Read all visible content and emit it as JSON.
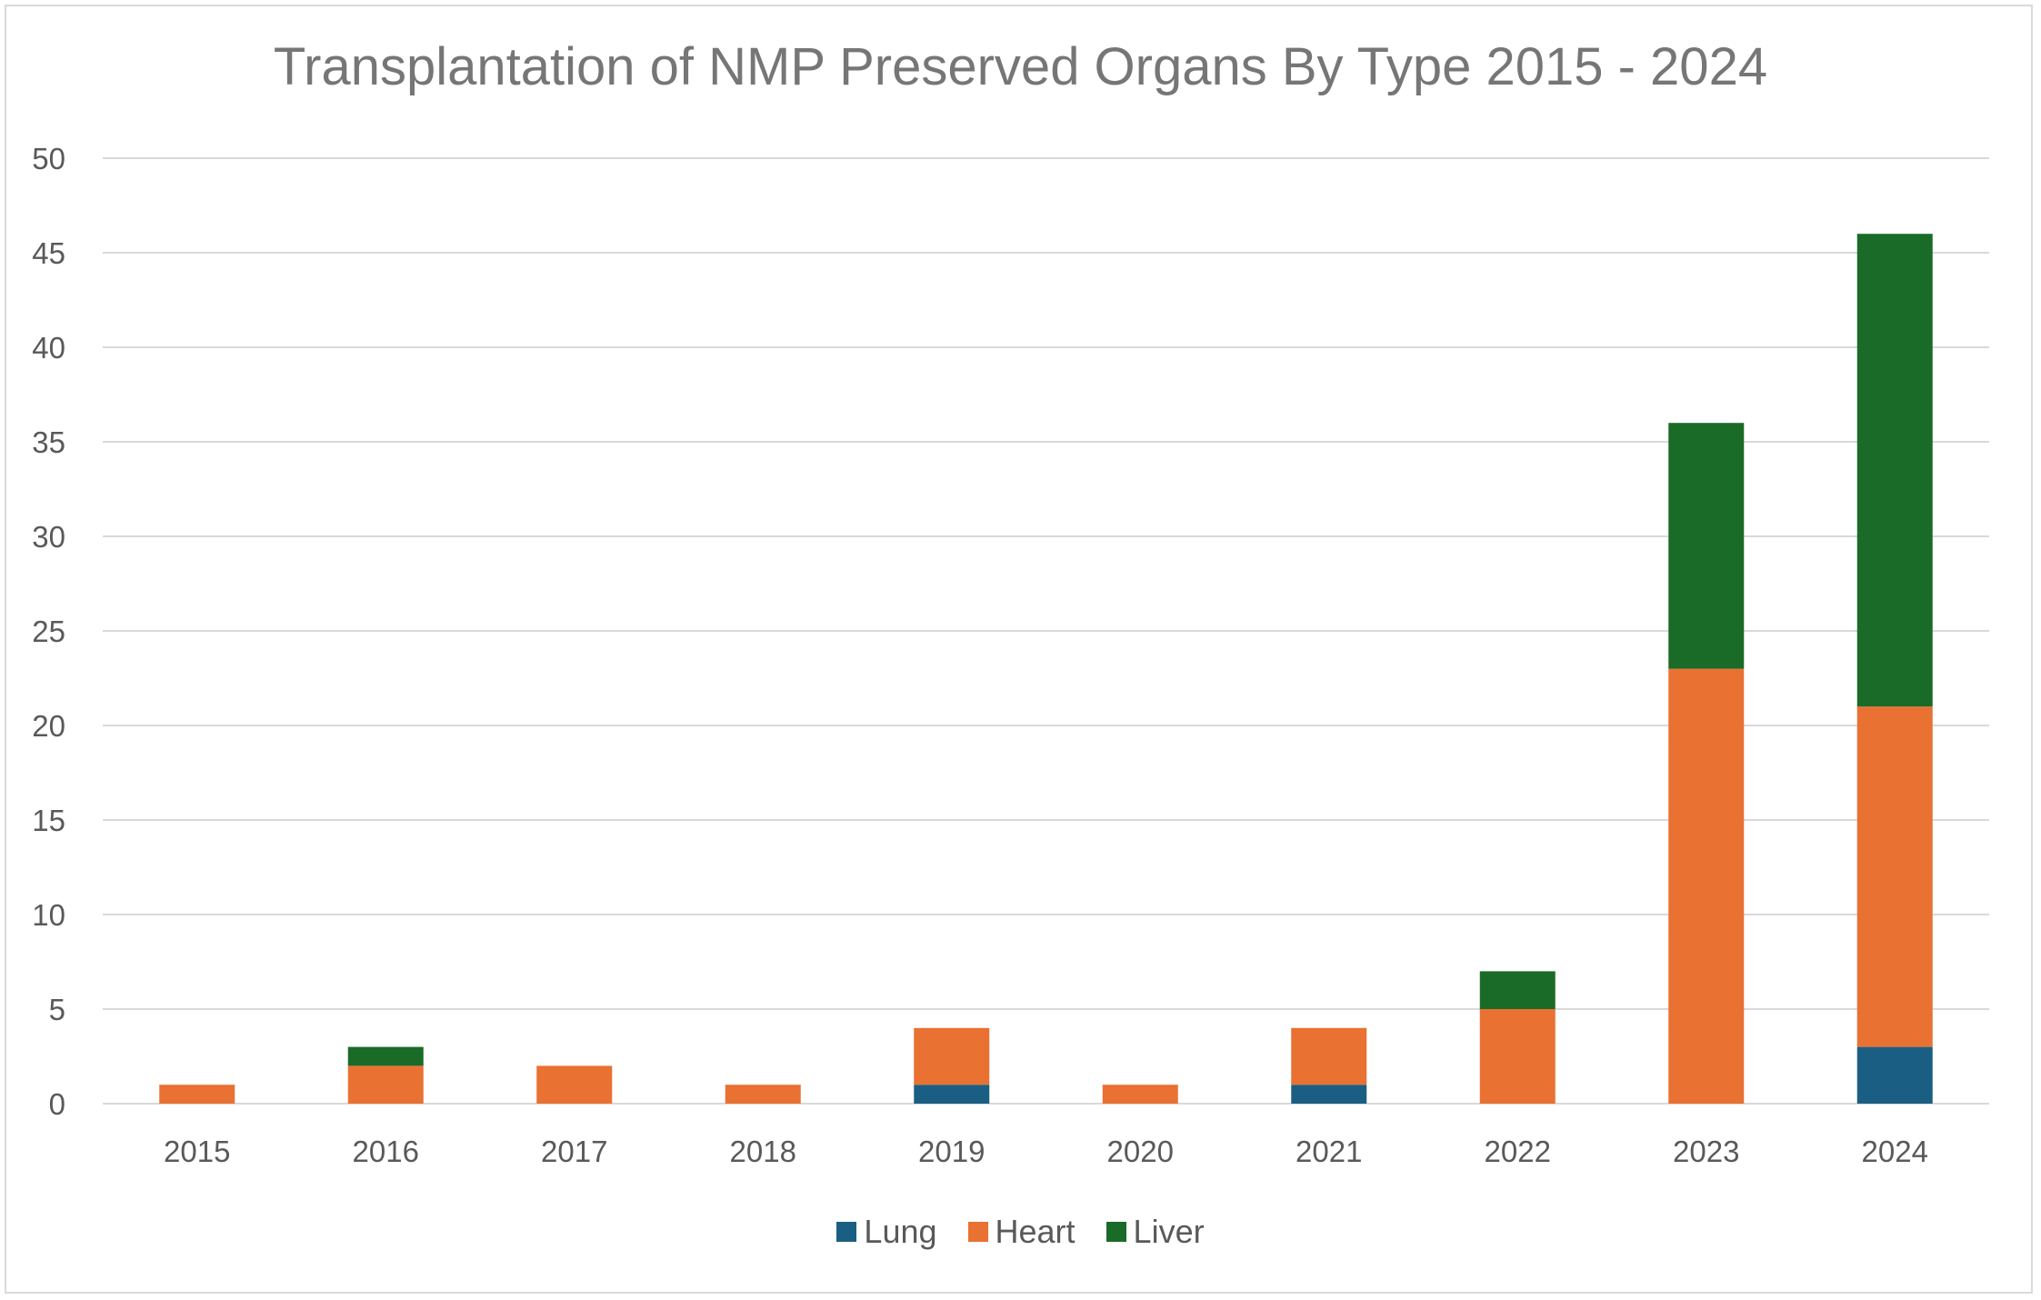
{
  "chart_data": {
    "type": "bar",
    "stacked": true,
    "title": "Transplantation of NMP Preserved Organs By Type 2015 - 2024",
    "xlabel": "",
    "ylabel": "",
    "categories": [
      "2015",
      "2016",
      "2017",
      "2018",
      "2019",
      "2020",
      "2021",
      "2022",
      "2023",
      "2024"
    ],
    "series": [
      {
        "name": "Lung",
        "color": "#1b5e83",
        "values": [
          0,
          0,
          0,
          0,
          1,
          0,
          1,
          0,
          0,
          3
        ]
      },
      {
        "name": "Heart",
        "color": "#e97132",
        "values": [
          1,
          2,
          2,
          1,
          3,
          1,
          3,
          5,
          23,
          18
        ]
      },
      {
        "name": "Liver",
        "color": "#1a6b27",
        "values": [
          0,
          1,
          0,
          0,
          0,
          0,
          0,
          2,
          13,
          25
        ]
      }
    ],
    "ylim": [
      0,
      50
    ],
    "yticks": [
      "0",
      "5",
      "10",
      "15",
      "20",
      "25",
      "30",
      "35",
      "40",
      "45",
      "50"
    ],
    "grid": true,
    "legend_position": "bottom"
  }
}
